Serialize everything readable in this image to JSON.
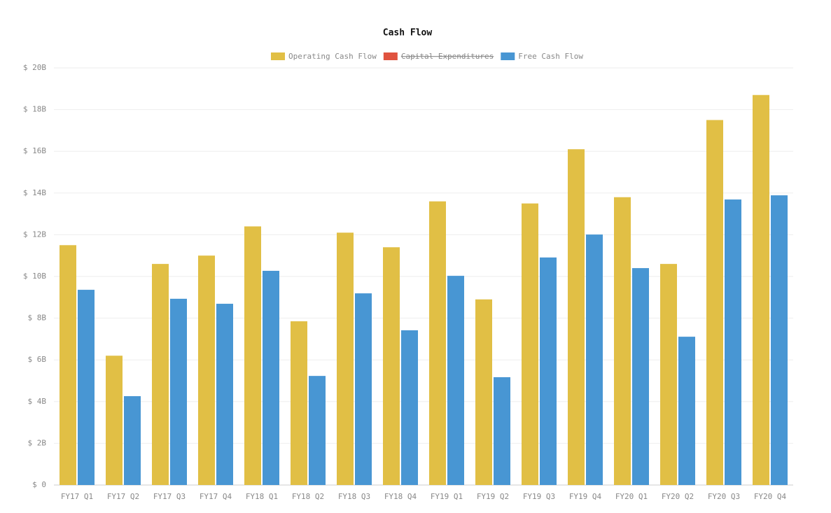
{
  "chart_data": {
    "type": "bar",
    "title": "Cash Flow",
    "categories": [
      "FY17 Q1",
      "FY17 Q2",
      "FY17 Q3",
      "FY17 Q4",
      "FY18 Q1",
      "FY18 Q2",
      "FY18 Q3",
      "FY18 Q4",
      "FY19 Q1",
      "FY19 Q2",
      "FY19 Q3",
      "FY19 Q4",
      "FY20 Q1",
      "FY20 Q2",
      "FY20 Q3",
      "FY20 Q4"
    ],
    "series": [
      {
        "name": "Operating Cash Flow",
        "color": "#e1bf45",
        "values": [
          11.5,
          6.2,
          10.6,
          11.0,
          12.4,
          7.85,
          12.1,
          11.4,
          13.6,
          8.9,
          13.5,
          16.1,
          13.8,
          10.6,
          17.5,
          18.7
        ]
      },
      {
        "name": "Capital Expenditures",
        "color": "#e0533f",
        "hidden": true,
        "values": [
          null,
          null,
          null,
          null,
          null,
          null,
          null,
          null,
          null,
          null,
          null,
          null,
          null,
          null,
          null,
          null
        ]
      },
      {
        "name": "Free Cash Flow",
        "color": "#4896d3",
        "values": [
          9.36,
          4.26,
          8.93,
          8.69,
          10.27,
          5.23,
          9.19,
          7.42,
          10.03,
          5.17,
          10.91,
          12.01,
          10.4,
          7.11,
          13.69,
          13.89
        ]
      }
    ],
    "ylim": [
      0,
      20
    ],
    "yticks": [
      {
        "value": 0,
        "label": "$ 0"
      },
      {
        "value": 2,
        "label": "$ 2B"
      },
      {
        "value": 4,
        "label": "$ 4B"
      },
      {
        "value": 6,
        "label": "$ 6B"
      },
      {
        "value": 8,
        "label": "$ 8B"
      },
      {
        "value": 10,
        "label": "$ 10B"
      },
      {
        "value": 12,
        "label": "$ 12B"
      },
      {
        "value": 14,
        "label": "$ 14B"
      },
      {
        "value": 16,
        "label": "$ 16B"
      },
      {
        "value": 18,
        "label": "$ 18B"
      },
      {
        "value": 20,
        "label": "$ 20B"
      }
    ],
    "grid": true,
    "legend": "top"
  }
}
